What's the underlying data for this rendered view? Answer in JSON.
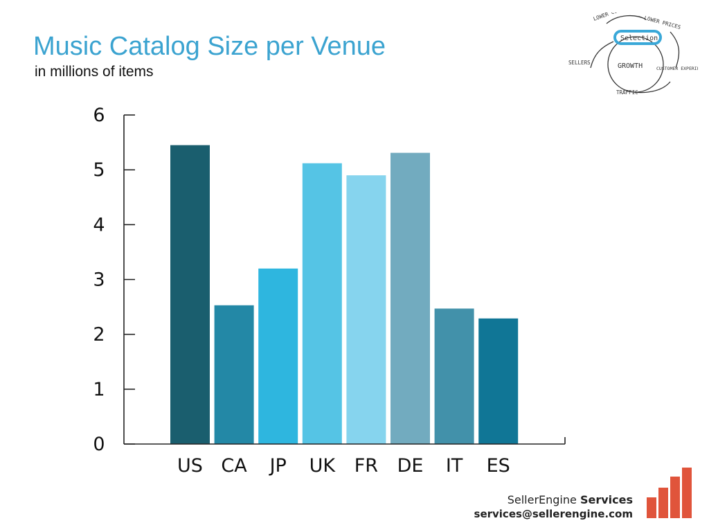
{
  "title": "Music Catalog Size per Venue",
  "subtitle": "in millions of items",
  "chart_data": {
    "type": "bar",
    "title": "Music Catalog Size per Venue",
    "subtitle": "in millions of items",
    "categories": [
      "US",
      "CA",
      "JP",
      "UK",
      "FR",
      "DE",
      "IT",
      "ES"
    ],
    "values": [
      5.45,
      2.53,
      3.2,
      5.12,
      4.9,
      5.31,
      2.47,
      2.29
    ],
    "colors": [
      "#1a5e6e",
      "#2388a6",
      "#2eb6df",
      "#55c4e5",
      "#86d4ee",
      "#72abbf",
      "#4291aa",
      "#107696"
    ],
    "ylim": [
      0,
      6
    ],
    "yticks": [
      "0",
      "1",
      "2",
      "3",
      "4",
      "5",
      "6"
    ],
    "grid": false,
    "legend": "none"
  },
  "diagram": {
    "labels": {
      "lower_cost": "LOWER COST STRUCTURE",
      "lower_prices": "LOWER PRICES",
      "selection": "Selection",
      "sellers": "SELLERS",
      "growth": "GROWTH",
      "customer_experience": "CUSTOMER EXPERIENCE",
      "traffic": "TRAFFIC"
    }
  },
  "branding": {
    "company": "SellerEngine",
    "company_suffix": "Services",
    "email": "services@sellerengine.com",
    "logo_color": "#e0543b"
  }
}
